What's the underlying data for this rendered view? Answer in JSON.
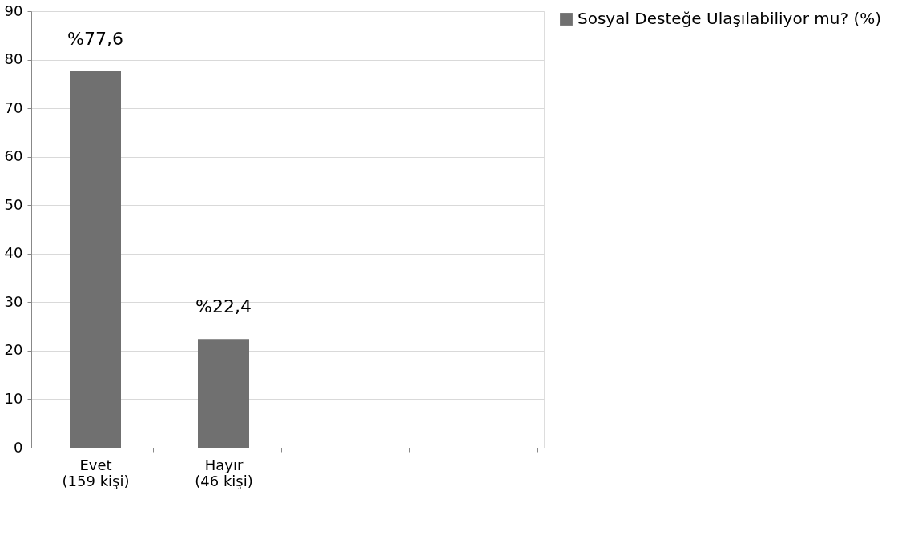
{
  "chart_data": {
    "type": "bar",
    "categories": [
      "Evet\n(159 kişi)",
      "Hayır\n(46 kişi)",
      null,
      null
    ],
    "series": [
      {
        "name": "Sosyal Desteğe Ulaşılabiliyor mu? (%)",
        "color": "#707070",
        "values": [
          77.6,
          22.4,
          null,
          null
        ],
        "value_labels": [
          "%77,6",
          "%22,4",
          null,
          null
        ]
      }
    ],
    "ylim": [
      0,
      90
    ],
    "yticks": [
      0,
      10,
      20,
      30,
      40,
      50,
      60,
      70,
      80,
      90
    ],
    "grid": "y",
    "legend": "right"
  }
}
